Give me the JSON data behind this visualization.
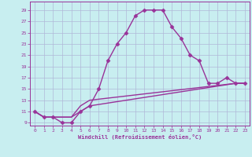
{
  "xlabel": "Windchill (Refroidissement éolien,°C)",
  "background_color": "#c8eef0",
  "grid_color": "#b0b8d8",
  "line_color": "#993399",
  "xlim": [
    -0.5,
    23.5
  ],
  "ylim": [
    8.5,
    30.5
  ],
  "xticks": [
    0,
    1,
    2,
    3,
    4,
    5,
    6,
    7,
    8,
    9,
    10,
    11,
    12,
    13,
    14,
    15,
    16,
    17,
    18,
    19,
    20,
    21,
    22,
    23
  ],
  "yticks": [
    9,
    11,
    13,
    15,
    17,
    19,
    21,
    23,
    25,
    27,
    29
  ],
  "line1_x": [
    0,
    1,
    2,
    3,
    4,
    5,
    6,
    7,
    8,
    9,
    10,
    11,
    12,
    13,
    14,
    15,
    16,
    17,
    18,
    19,
    20,
    21,
    22,
    23
  ],
  "line1_y": [
    11,
    10,
    10,
    9,
    9,
    11,
    12,
    15,
    20,
    23,
    25,
    28,
    29,
    29,
    29,
    26,
    24,
    21,
    20,
    16,
    16,
    17,
    16,
    16
  ],
  "line2_x": [
    0,
    1,
    2,
    3,
    4,
    5,
    6,
    22,
    23
  ],
  "line2_y": [
    11,
    10,
    10,
    10,
    10,
    11,
    12,
    16,
    16
  ],
  "line3_x": [
    0,
    1,
    2,
    3,
    4,
    5,
    6,
    22,
    23
  ],
  "line3_y": [
    11,
    10,
    10,
    10,
    10,
    12,
    13,
    16,
    16
  ],
  "marker": "D",
  "markersize": 2.5,
  "linewidth": 1.0
}
